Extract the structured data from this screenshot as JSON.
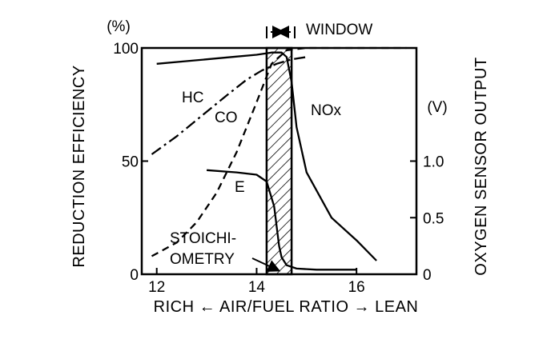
{
  "chart_data": {
    "type": "line",
    "title": "",
    "xlabel": "RICH ← AIR/FUEL  RATIO → LEAN",
    "ylabel": "REDUCTION EFFICIENCY",
    "y_unit": "(%)",
    "y2label": "OXYGEN SENSOR OUTPUT",
    "y2_unit": "(V)",
    "xlim": [
      11.7,
      17.2
    ],
    "ylim": [
      0,
      100
    ],
    "y2lim": [
      0,
      2.0
    ],
    "xticks": [
      "12",
      "14",
      "16"
    ],
    "yticks": [
      "0",
      "50",
      "100"
    ],
    "y2ticks": [
      "0",
      "0.5",
      "1.0"
    ],
    "grid": false,
    "series": [
      {
        "name": "HC",
        "style": "dash-dot",
        "axis": "left",
        "x": [
          11.9,
          12.4,
          12.9,
          13.4,
          13.8,
          14.1,
          14.4,
          14.7,
          15.0
        ],
        "y": [
          53,
          61,
          70,
          79,
          86,
          90,
          93,
          95,
          96
        ]
      },
      {
        "name": "CO",
        "style": "dashed",
        "axis": "left",
        "x": [
          11.9,
          12.4,
          12.8,
          13.2,
          13.6,
          14.0,
          14.3,
          14.6,
          15.0,
          16.0,
          17.0
        ],
        "y": [
          8,
          14,
          23,
          36,
          54,
          76,
          93,
          99,
          100,
          100,
          100
        ]
      },
      {
        "name": "NOx",
        "style": "solid",
        "axis": "left",
        "x": [
          12.0,
          12.5,
          13.0,
          13.5,
          14.0,
          14.3,
          14.5,
          14.6,
          14.7,
          14.8,
          15.0,
          15.5,
          16.0,
          16.4
        ],
        "y": [
          93,
          94,
          95,
          96,
          97,
          98,
          98,
          96,
          85,
          65,
          45,
          25,
          15,
          6
        ]
      },
      {
        "name": "E",
        "style": "solid",
        "axis": "right",
        "x": [
          13.0,
          13.6,
          14.0,
          14.2,
          14.35,
          14.45,
          14.5,
          14.6,
          14.8,
          15.2,
          16.0
        ],
        "y": [
          0.92,
          0.9,
          0.88,
          0.82,
          0.6,
          0.25,
          0.15,
          0.08,
          0.05,
          0.04,
          0.04
        ]
      }
    ],
    "annotations": {
      "window_label": "WINDOW",
      "window_range": [
        14.2,
        14.7
      ],
      "stoichiometry_line1": "STOICHI-",
      "stoichiometry_line2": "OMETRY",
      "stoichiometry_x": 14.5
    }
  }
}
